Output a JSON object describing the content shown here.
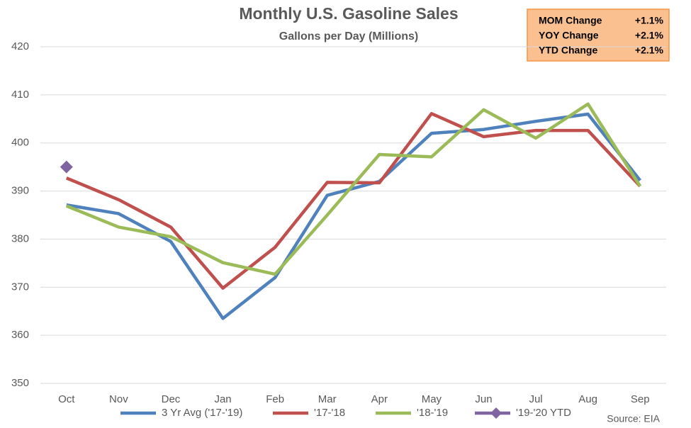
{
  "chart_data": {
    "type": "line",
    "title": "Monthly U.S. Gasoline Sales",
    "subtitle": "Gallons per Day (Millions)",
    "categories": [
      "Oct",
      "Nov",
      "Dec",
      "Jan",
      "Feb",
      "Mar",
      "Apr",
      "May",
      "Jun",
      "Jul",
      "Aug",
      "Sep"
    ],
    "series": [
      {
        "name": "3 Yr Avg ('17-'19)",
        "color": "#4f81bd",
        "values": [
          387.1,
          385.3,
          379.5,
          363.5,
          372.0,
          389.1,
          392.0,
          402.0,
          402.8,
          404.5,
          406.0,
          392.2
        ]
      },
      {
        "name": "'17-'18",
        "color": "#c0504d",
        "values": [
          392.7,
          388.2,
          382.5,
          369.8,
          378.3,
          391.8,
          391.7,
          406.1,
          401.3,
          402.6,
          402.6,
          391.0
        ]
      },
      {
        "name": "'18-'19",
        "color": "#9bbb59",
        "values": [
          386.9,
          382.5,
          380.5,
          375.1,
          372.7,
          385.0,
          397.6,
          397.1,
          406.9,
          401.0,
          408.1,
          391.0
        ]
      },
      {
        "name": "'19-'20 YTD",
        "color": "#8064a2",
        "marker": "diamond",
        "show_line": false,
        "values": [
          395.0,
          null,
          null,
          null,
          null,
          null,
          null,
          null,
          null,
          null,
          null,
          null
        ]
      }
    ],
    "ylim": [
      350,
      420
    ],
    "yticks": [
      350,
      360,
      370,
      380,
      390,
      400,
      410,
      420
    ],
    "grid": true,
    "legend": "bottom",
    "summary_box": [
      {
        "label": "MOM Change",
        "value": "+1.1%"
      },
      {
        "label": "YOY Change",
        "value": "+2.1%"
      },
      {
        "label": "YTD Change",
        "value": "+2.1%"
      }
    ],
    "source": "Source: EIA"
  }
}
